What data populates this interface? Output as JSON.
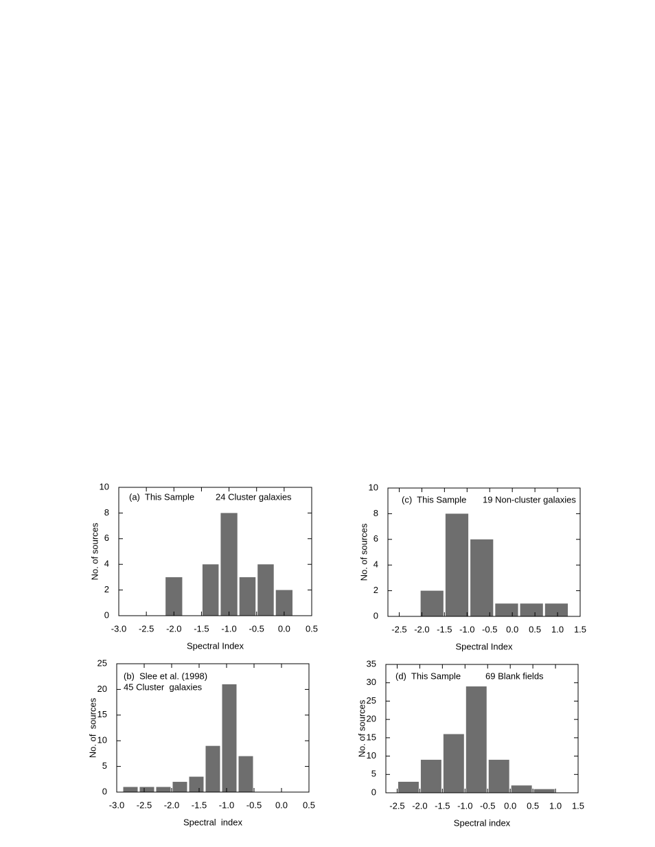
{
  "chart_data": [
    {
      "type": "histogram",
      "annotations": [
        "(a)  This Sample",
        "24 Cluster galaxies"
      ],
      "x_label": "Spectral Index",
      "y_label": "No. of sources",
      "bins": [
        -2.17,
        -1.83,
        -1.5,
        -1.17,
        -0.83,
        -0.5,
        -0.17,
        0.17
      ],
      "values": [
        3,
        0,
        4,
        8,
        3,
        4,
        2
      ],
      "color": "#6e6e6e",
      "xlim": [
        -3,
        0.5
      ],
      "ylim": [
        0,
        10
      ],
      "xticks": [
        {
          "value": -3,
          "label": "-3.0"
        },
        -2.5,
        {
          "value": -2,
          "label": "-2.0"
        },
        -1.5,
        {
          "value": -1,
          "label": "-1.0"
        },
        -0.5,
        {
          "value": 0,
          "label": "0.0"
        },
        0.5
      ],
      "yticks": [
        0,
        2,
        4,
        6,
        8,
        10
      ]
    },
    {
      "type": "histogram",
      "annotations": [
        "(b)  Slee et al. (1998)",
        "45 Cluster  galaxies"
      ],
      "x_label": "Spectral  index",
      "y_label": "No. of  sources",
      "bins": [
        -2.9,
        -2.6,
        -2.3,
        -2.0,
        -1.7,
        -1.4,
        -1.1,
        -0.8,
        -0.5
      ],
      "values": [
        1,
        1,
        1,
        2,
        3,
        9,
        21,
        7
      ],
      "color": "#6e6e6e",
      "xlim": [
        -3,
        0.5
      ],
      "ylim": [
        0,
        25
      ],
      "xticks": [
        {
          "value": -3,
          "label": "-3.0"
        },
        -2.5,
        {
          "value": -2,
          "label": "-2.0"
        },
        -1.5,
        {
          "value": -1,
          "label": "-1.0"
        },
        -0.5,
        {
          "value": 0,
          "label": "0.0"
        },
        0.5
      ],
      "yticks": [
        0,
        5,
        10,
        15,
        20,
        25
      ]
    },
    {
      "type": "histogram",
      "annotations": [
        "(c)  This Sample",
        "19 Non-cluster galaxies"
      ],
      "x_label": "Spectral Index",
      "y_label": "No. of sources",
      "bins": [
        -2.05,
        -1.5,
        -0.95,
        -0.4,
        0.15,
        0.7,
        1.25
      ],
      "values": [
        2,
        8,
        6,
        1,
        1,
        1
      ],
      "color": "#6e6e6e",
      "xlim": [
        -2.75,
        1.5
      ],
      "ylim": [
        0,
        10
      ],
      "xticks": [
        -2.5,
        {
          "value": -2,
          "label": "-2.0"
        },
        -1.5,
        {
          "value": -1,
          "label": "-1.0"
        },
        -0.5,
        {
          "value": 0,
          "label": "0.0"
        },
        0.5,
        {
          "value": 1,
          "label": "1.0"
        },
        1.5
      ],
      "yticks": [
        0,
        2,
        4,
        6,
        8,
        10
      ]
    },
    {
      "type": "histogram",
      "annotations": [
        "(d)  This Sample",
        "69 Blank fields"
      ],
      "x_label": "Spectral index",
      "y_label": "No. of sources",
      "bins": [
        -2.5,
        -2.0,
        -1.5,
        -1.0,
        -0.5,
        0.0,
        0.5,
        1.0
      ],
      "values": [
        3,
        9,
        16,
        29,
        9,
        2,
        1
      ],
      "color": "#6e6e6e",
      "xlim": [
        -2.75,
        1.5
      ],
      "ylim": [
        0,
        35
      ],
      "xticks": [
        -2.5,
        {
          "value": -2,
          "label": "-2.0"
        },
        -1.5,
        {
          "value": -1,
          "label": "-1.0"
        },
        -0.5,
        {
          "value": 0,
          "label": "0.0"
        },
        0.5,
        {
          "value": 1,
          "label": "1.0"
        },
        1.5
      ],
      "yticks": [
        0,
        5,
        10,
        15,
        20,
        25,
        30,
        35
      ]
    }
  ]
}
